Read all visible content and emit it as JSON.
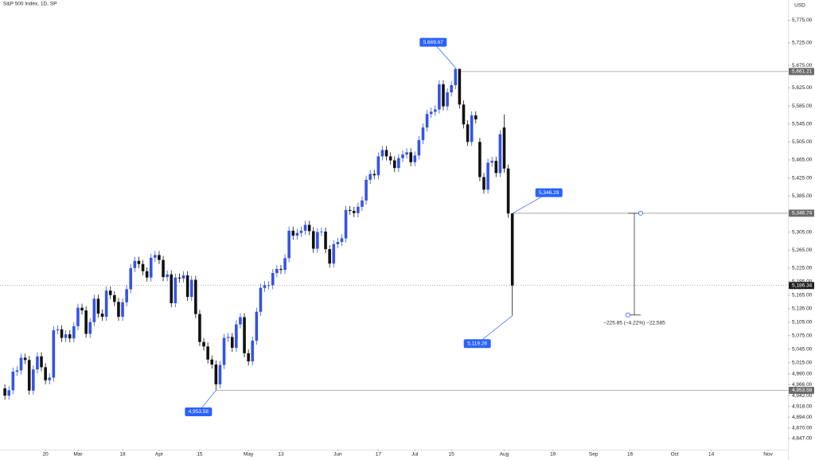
{
  "chart_data": {
    "type": "candlestick",
    "title": "S&P 500 Index, 1D, SP",
    "currency": "USD",
    "up_color": "#3553e6",
    "down_color": "#111111",
    "open": [
      4958,
      4942,
      4954,
      4995,
      4998,
      5026,
      5021,
      4953,
      5000,
      5029,
      5005,
      4976,
      4982,
      5087,
      5089,
      5070,
      5078,
      5069,
      5096,
      5137,
      5131,
      5079,
      5105,
      5157,
      5124,
      5117,
      5175,
      5165,
      5150,
      5117,
      5149,
      5178,
      5225,
      5241,
      5234,
      5218,
      5204,
      5248,
      5254,
      5243,
      5205,
      5211,
      5147,
      5204,
      5202,
      5209,
      5161,
      5199,
      5123,
      5061,
      5051,
      5022,
      5011,
      4967,
      5010,
      5070,
      5072,
      5048,
      5100,
      5116,
      5036,
      5018,
      5064,
      5128,
      5181,
      5187,
      5187,
      5214,
      5223,
      5221,
      5247,
      5308,
      5297,
      5303,
      5308,
      5321,
      5307,
      5268,
      5305,
      5306,
      5267,
      5235,
      5278,
      5283,
      5291,
      5354,
      5352,
      5347,
      5361,
      5375,
      5421,
      5434,
      5431,
      5473,
      5487,
      5473,
      5464,
      5447,
      5469,
      5477,
      5482,
      5460,
      5475,
      5509,
      5537,
      5567,
      5572,
      5577,
      5633,
      5584,
      5615,
      5631,
      5667,
      5588,
      5544,
      5505,
      5564,
      5505,
      5427,
      5399,
      5459,
      5463,
      5436,
      5537,
      5446,
      5346.29
    ],
    "high": [
      4967,
      4963,
      5004,
      5007,
      5035,
      5035,
      5030,
      5009,
      5038,
      5038,
      5014,
      4991,
      5096,
      5098,
      5098,
      5087,
      5087,
      5105,
      5146,
      5146,
      5140,
      5114,
      5166,
      5166,
      5133,
      5184,
      5184,
      5174,
      5159,
      5158,
      5187,
      5234,
      5250,
      5250,
      5243,
      5227,
      5257,
      5263,
      5263,
      5252,
      5220,
      5220,
      5213,
      5213,
      5218,
      5218,
      5208,
      5208,
      5132,
      5070,
      5060,
      5031,
      5020,
      5019,
      5079,
      5081,
      5081,
      5109,
      5125,
      5125,
      5045,
      5073,
      5137,
      5190,
      5196,
      5196,
      5223,
      5232,
      5232,
      5256,
      5317,
      5317,
      5312,
      5317,
      5330,
      5330,
      5316,
      5314,
      5315,
      5315,
      5276,
      5287,
      5292,
      5300,
      5363,
      5363,
      5361,
      5370,
      5384,
      5430,
      5443,
      5443,
      5482,
      5496,
      5496,
      5482,
      5473,
      5478,
      5486,
      5491,
      5491,
      5484,
      5518,
      5546,
      5576,
      5581,
      5586,
      5642,
      5642,
      5624,
      5640,
      5669.67,
      5668,
      5597,
      5553,
      5573,
      5573,
      5514,
      5436,
      5468,
      5472,
      5472,
      5531,
      5566,
      5455,
      5346.29
    ],
    "low": [
      4933,
      4933,
      4945,
      4986,
      4989,
      5012,
      4944,
      4944,
      4991,
      4996,
      4967,
      4967,
      4973,
      5078,
      5061,
      5061,
      5060,
      5060,
      5087,
      5122,
      5070,
      5070,
      5096,
      5115,
      5108,
      5108,
      5156,
      5141,
      5108,
      5108,
      5140,
      5169,
      5216,
      5225,
      5209,
      5195,
      5195,
      5239,
      5234,
      5196,
      5196,
      5138,
      5138,
      5193,
      5193,
      5152,
      5152,
      5114,
      5052,
      5042,
      5013,
      5002,
      4953.58,
      4958,
      5001,
      5061,
      5039,
      5039,
      5091,
      5027,
      5009,
      5009,
      5055,
      5119,
      5172,
      5178,
      5178,
      5205,
      5212,
      5212,
      5238,
      5288,
      5288,
      5294,
      5299,
      5298,
      5259,
      5259,
      5296,
      5258,
      5226,
      5226,
      5269,
      5274,
      5282,
      5343,
      5338,
      5338,
      5352,
      5366,
      5412,
      5422,
      5422,
      5464,
      5464,
      5455,
      5438,
      5438,
      5460,
      5468,
      5451,
      5451,
      5466,
      5500,
      5528,
      5558,
      5563,
      5568,
      5575,
      5575,
      5606,
      5622,
      5579,
      5535,
      5496,
      5496,
      5546,
      5418,
      5390,
      5390,
      5450,
      5427,
      5427,
      5437,
      5337,
      5119.26
    ],
    "close": [
      4942,
      4954,
      4995,
      4998,
      5026,
      5021,
      4953,
      5000,
      5029,
      5005,
      4976,
      4982,
      5087,
      5089,
      5070,
      5078,
      5069,
      5096,
      5137,
      5131,
      5079,
      5105,
      5157,
      5124,
      5117,
      5175,
      5165,
      5150,
      5117,
      5149,
      5178,
      5225,
      5241,
      5234,
      5218,
      5204,
      5248,
      5254,
      5243,
      5205,
      5211,
      5147,
      5204,
      5202,
      5209,
      5161,
      5199,
      5123,
      5061,
      5051,
      5022,
      5011,
      4967,
      5010,
      5070,
      5072,
      5048,
      5100,
      5116,
      5036,
      5018,
      5064,
      5128,
      5181,
      5187,
      5187,
      5214,
      5223,
      5221,
      5247,
      5308,
      5297,
      5303,
      5308,
      5321,
      5307,
      5268,
      5305,
      5306,
      5267,
      5235,
      5278,
      5283,
      5291,
      5354,
      5352,
      5347,
      5361,
      5375,
      5421,
      5434,
      5431,
      5473,
      5487,
      5473,
      5464,
      5447,
      5469,
      5477,
      5482,
      5460,
      5475,
      5509,
      5537,
      5567,
      5572,
      5577,
      5633,
      5584,
      5615,
      5631,
      5667,
      5588,
      5544,
      5505,
      5564,
      5555,
      5427,
      5399,
      5459,
      5463,
      5436,
      5522,
      5446,
      5346.29,
      5186.34
    ],
    "xlim": [
      -1.2,
      192.9
    ],
    "xticks": [
      {
        "value": 10,
        "label": "20"
      },
      {
        "value": 18,
        "label": "Mar"
      },
      {
        "value": 29,
        "label": "18"
      },
      {
        "value": 38,
        "label": "Apr"
      },
      {
        "value": 48,
        "label": "15"
      },
      {
        "value": 60,
        "label": "May"
      },
      {
        "value": 68,
        "label": "13"
      },
      {
        "value": 82,
        "label": "Jun"
      },
      {
        "value": 92,
        "label": "17"
      },
      {
        "value": 101,
        "label": "Jul"
      },
      {
        "value": 110,
        "label": "15"
      },
      {
        "value": 123,
        "label": "Aug"
      },
      {
        "value": 135,
        "label": "19"
      },
      {
        "value": 145,
        "label": "Sep"
      },
      {
        "value": 154,
        "label": "16"
      },
      {
        "value": 165,
        "label": "Oct"
      },
      {
        "value": 174,
        "label": "14"
      },
      {
        "value": 188,
        "label": "Nov"
      }
    ],
    "ylim": [
      4822,
      5820
    ],
    "yticks": [
      {
        "value": 5775,
        "label": "5,775.00"
      },
      {
        "value": 5725,
        "label": "5,725.00"
      },
      {
        "value": 5675,
        "label": "5,675.00"
      },
      {
        "value": 5625,
        "label": "5,625.00"
      },
      {
        "value": 5585,
        "label": "5,585.00"
      },
      {
        "value": 5545,
        "label": "5,545.00"
      },
      {
        "value": 5505,
        "label": "5,505.00"
      },
      {
        "value": 5465,
        "label": "5,465.00"
      },
      {
        "value": 5425,
        "label": "5,425.00"
      },
      {
        "value": 5385,
        "label": "5,385.00"
      },
      {
        "value": 5305,
        "label": "5,305.00"
      },
      {
        "value": 5265,
        "label": "5,265.00"
      },
      {
        "value": 5225,
        "label": "5,225.00"
      },
      {
        "value": 5195,
        "label": "5,195.00"
      },
      {
        "value": 5165,
        "label": "5,165.00"
      },
      {
        "value": 5135,
        "label": "5,135.00"
      },
      {
        "value": 5105,
        "label": "5,105.00"
      },
      {
        "value": 5075,
        "label": "5,075.00"
      },
      {
        "value": 5045,
        "label": "5,045.00"
      },
      {
        "value": 5015,
        "label": "5,015.00"
      },
      {
        "value": 4990,
        "label": "4,990.00"
      },
      {
        "value": 4966,
        "label": "4,966.00"
      },
      {
        "value": 4942,
        "label": "4,942.00"
      },
      {
        "value": 4918,
        "label": "4,918.00"
      },
      {
        "value": 4894,
        "label": "4,894.00"
      },
      {
        "value": 4870,
        "label": "4,870.00"
      },
      {
        "value": 4847,
        "label": "4,847.00"
      }
    ],
    "annotations": [
      {
        "value": 5669.67,
        "label": "5,669.67"
      },
      {
        "value": 5346.29,
        "label": "5,346.29"
      },
      {
        "value": 5119.26,
        "label": "5,119.26"
      },
      {
        "value": 4953.58,
        "label": "4,953.58"
      }
    ],
    "price_lines": [
      {
        "value": 5661.21,
        "label": "5,661.21",
        "style": "solid",
        "color": "#6b6b6b"
      },
      {
        "value": 5346.74,
        "label": "5,346.74",
        "style": "solid",
        "color": "#6b6b6b"
      },
      {
        "value": 5186.34,
        "label": "5,186.34",
        "style": "dotted",
        "color": "#222222"
      },
      {
        "value": 4953.58,
        "label": "4,953.58",
        "style": "solid",
        "color": "#6b6b6b"
      }
    ],
    "measure": {
      "from": 5346.74,
      "to": 5120.89,
      "label": "−225.85 (−4.22%) −22,585"
    }
  }
}
